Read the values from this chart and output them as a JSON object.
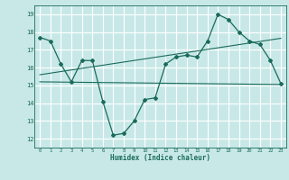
{
  "xlabel": "Humidex (Indice chaleur)",
  "background_color": "#c8e8e8",
  "grid_color": "#ffffff",
  "line_color": "#1a6b5a",
  "xlim": [
    -0.5,
    23.5
  ],
  "ylim": [
    11.5,
    19.5
  ],
  "xticks": [
    0,
    1,
    2,
    3,
    4,
    5,
    6,
    7,
    8,
    9,
    10,
    11,
    12,
    13,
    14,
    15,
    16,
    17,
    18,
    19,
    20,
    21,
    22,
    23
  ],
  "yticks": [
    12,
    13,
    14,
    15,
    16,
    17,
    18,
    19
  ],
  "main_x": [
    0,
    1,
    2,
    3,
    4,
    5,
    6,
    7,
    8,
    9,
    10,
    11,
    12,
    13,
    14,
    15,
    16,
    17,
    18,
    19,
    20,
    21,
    22,
    23
  ],
  "main_y": [
    17.7,
    17.5,
    16.2,
    15.2,
    16.4,
    16.4,
    14.1,
    12.2,
    12.3,
    13.0,
    14.2,
    14.3,
    16.2,
    16.6,
    16.7,
    16.6,
    17.5,
    19.0,
    18.7,
    18.0,
    17.5,
    17.3,
    16.4,
    15.1
  ],
  "trend1_x": [
    0,
    23
  ],
  "trend1_y": [
    15.2,
    15.05
  ],
  "trend2_x": [
    0,
    23
  ],
  "trend2_y": [
    15.6,
    17.65
  ]
}
